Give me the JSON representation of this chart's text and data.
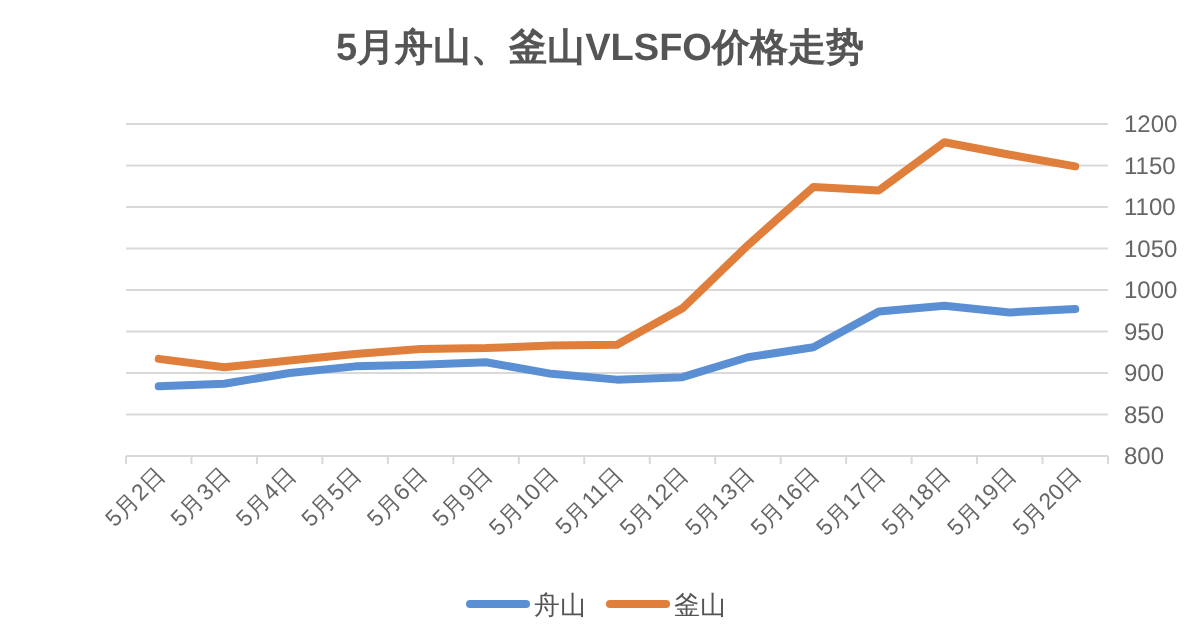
{
  "chart_data": {
    "type": "line",
    "title": "5月舟山、釜山VLSFO价格走势",
    "categories": [
      "5月2日",
      "5月3日",
      "5月4日",
      "5月5日",
      "5月6日",
      "5月9日",
      "5月10日",
      "5月11日",
      "5月12日",
      "5月13日",
      "5月16日",
      "5月17日",
      "5月18日",
      "5月19日",
      "5月20日"
    ],
    "series": [
      {
        "name": "舟山",
        "color": "#5b8fd4",
        "values": [
          884,
          887,
          900,
          908,
          910,
          913,
          899,
          892,
          895,
          919,
          931,
          974,
          981,
          973,
          977
        ]
      },
      {
        "name": "釜山",
        "color": "#e07e3c",
        "values": [
          917,
          907,
          915,
          923,
          929,
          930,
          933,
          934,
          978,
          1054,
          1124,
          1120,
          1178,
          1163,
          1149
        ]
      }
    ],
    "ylim": [
      800,
      1200
    ],
    "yticks": [
      800,
      850,
      900,
      950,
      1000,
      1050,
      1100,
      1150,
      1200
    ],
    "grid": "y",
    "legend": "bottom",
    "marker": "none",
    "line_style": "solid"
  }
}
